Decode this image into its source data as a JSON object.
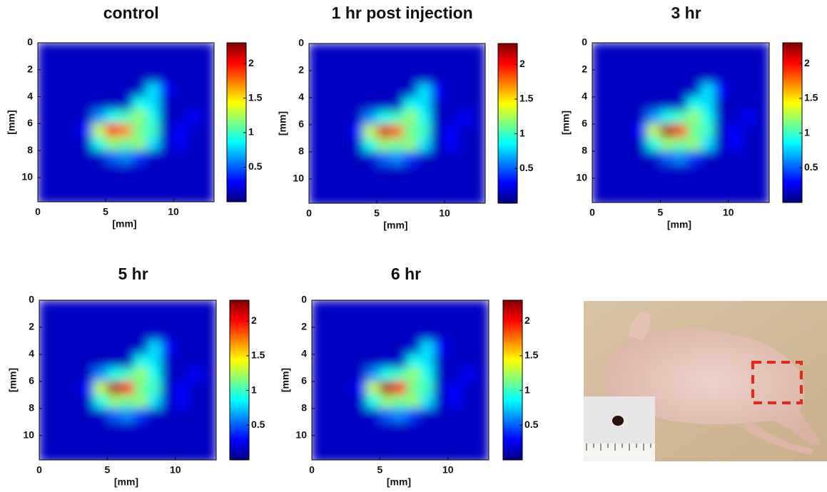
{
  "chart_data": [
    {
      "type": "heatmap",
      "title": "control",
      "xlabel": "[mm]",
      "ylabel": "[mm]",
      "colormap": "jet",
      "x": [
        0.5,
        1.5,
        2.5,
        3.5,
        4.5,
        5.5,
        6.5,
        7.5,
        8.5,
        9.5,
        10.5,
        11.5,
        12.5
      ],
      "y": [
        0.5,
        1.5,
        2.5,
        3.5,
        4.5,
        5.5,
        6.5,
        7.5,
        8.5,
        9.5,
        10.5,
        11.5
      ],
      "z": [
        [
          0.15,
          0.15,
          0.15,
          0.15,
          0.15,
          0.15,
          0.15,
          0.15,
          0.15,
          0.15,
          0.15,
          0.15,
          0.15
        ],
        [
          0.15,
          0.15,
          0.15,
          0.15,
          0.15,
          0.15,
          0.15,
          0.15,
          0.15,
          0.15,
          0.15,
          0.15,
          0.15
        ],
        [
          0.15,
          0.15,
          0.15,
          0.15,
          0.15,
          0.15,
          0.15,
          0.15,
          0.15,
          0.15,
          0.15,
          0.15,
          0.15
        ],
        [
          0.15,
          0.15,
          0.15,
          0.15,
          0.15,
          0.15,
          0.15,
          0.15,
          0.8,
          0.3,
          0.15,
          0.15,
          0.15
        ],
        [
          0.15,
          0.15,
          0.15,
          0.15,
          0.15,
          0.15,
          0.15,
          0.9,
          0.8,
          0.15,
          0.15,
          0.15,
          0.15
        ],
        [
          0.15,
          0.15,
          0.15,
          0.15,
          0.6,
          0.9,
          1.0,
          1.2,
          0.9,
          0.15,
          0.15,
          0.3,
          0.15
        ],
        [
          0.15,
          0.15,
          0.15,
          0.3,
          1.3,
          2.0,
          1.7,
          1.1,
          1.0,
          0.15,
          0.3,
          0.15,
          0.15
        ],
        [
          0.15,
          0.15,
          0.15,
          0.15,
          0.9,
          1.2,
          1.1,
          1.2,
          0.8,
          0.15,
          0.3,
          0.15,
          0.15
        ],
        [
          0.15,
          0.15,
          0.15,
          0.15,
          0.15,
          0.5,
          0.6,
          0.4,
          0.15,
          0.15,
          0.15,
          0.15,
          0.15
        ],
        [
          0.15,
          0.15,
          0.15,
          0.15,
          0.15,
          0.15,
          0.15,
          0.15,
          0.15,
          0.15,
          0.15,
          0.15,
          0.15
        ],
        [
          0.15,
          0.15,
          0.15,
          0.15,
          0.15,
          0.15,
          0.15,
          0.15,
          0.15,
          0.15,
          0.15,
          0.15,
          0.15
        ],
        [
          0.15,
          0.15,
          0.15,
          0.15,
          0.15,
          0.15,
          0.15,
          0.15,
          0.15,
          0.15,
          0.15,
          0.15,
          0.15
        ]
      ],
      "xlim": [
        0,
        13
      ],
      "ylim": [
        0,
        11.8
      ],
      "xticks": [
        0,
        5,
        10
      ],
      "yticks": [
        0,
        2,
        4,
        6,
        8,
        10
      ],
      "clim": [
        0,
        2.3
      ],
      "cticks": [
        0.5,
        1,
        1.5,
        2
      ]
    },
    {
      "type": "heatmap",
      "title": "1 hr post injection",
      "xlabel": "[mm]",
      "ylabel": "[mm]",
      "colormap": "jet",
      "x": [
        0.5,
        1.5,
        2.5,
        3.5,
        4.5,
        5.5,
        6.5,
        7.5,
        8.5,
        9.5,
        10.5,
        11.5,
        12.5
      ],
      "y": [
        0.5,
        1.5,
        2.5,
        3.5,
        4.5,
        5.5,
        6.5,
        7.5,
        8.5,
        9.5,
        10.5,
        11.5
      ],
      "z": [
        [
          0.15,
          0.15,
          0.15,
          0.15,
          0.15,
          0.15,
          0.15,
          0.15,
          0.15,
          0.15,
          0.15,
          0.15,
          0.15
        ],
        [
          0.15,
          0.15,
          0.15,
          0.15,
          0.15,
          0.15,
          0.15,
          0.15,
          0.15,
          0.15,
          0.15,
          0.15,
          0.15
        ],
        [
          0.15,
          0.15,
          0.15,
          0.15,
          0.15,
          0.15,
          0.15,
          0.15,
          0.15,
          0.15,
          0.15,
          0.15,
          0.15
        ],
        [
          0.15,
          0.15,
          0.15,
          0.15,
          0.15,
          0.15,
          0.15,
          0.15,
          0.8,
          0.3,
          0.15,
          0.15,
          0.15
        ],
        [
          0.15,
          0.15,
          0.15,
          0.15,
          0.15,
          0.15,
          0.15,
          0.9,
          0.8,
          0.15,
          0.15,
          0.15,
          0.15
        ],
        [
          0.15,
          0.15,
          0.15,
          0.15,
          0.6,
          0.9,
          1.0,
          1.2,
          0.9,
          0.15,
          0.15,
          0.3,
          0.15
        ],
        [
          0.15,
          0.15,
          0.15,
          0.3,
          1.3,
          2.1,
          1.8,
          1.1,
          1.0,
          0.15,
          0.3,
          0.15,
          0.15
        ],
        [
          0.15,
          0.15,
          0.15,
          0.15,
          0.9,
          1.2,
          1.1,
          1.2,
          0.8,
          0.15,
          0.3,
          0.15,
          0.15
        ],
        [
          0.15,
          0.15,
          0.15,
          0.15,
          0.15,
          0.5,
          0.6,
          0.4,
          0.15,
          0.15,
          0.15,
          0.15,
          0.15
        ],
        [
          0.15,
          0.15,
          0.15,
          0.15,
          0.15,
          0.15,
          0.15,
          0.15,
          0.15,
          0.15,
          0.15,
          0.15,
          0.15
        ],
        [
          0.15,
          0.15,
          0.15,
          0.15,
          0.15,
          0.15,
          0.15,
          0.15,
          0.15,
          0.15,
          0.15,
          0.15,
          0.15
        ],
        [
          0.15,
          0.15,
          0.15,
          0.15,
          0.15,
          0.15,
          0.15,
          0.15,
          0.15,
          0.15,
          0.15,
          0.15,
          0.15
        ]
      ],
      "xlim": [
        0,
        13
      ],
      "ylim": [
        0,
        11.8
      ],
      "xticks": [
        0,
        5,
        10
      ],
      "yticks": [
        0,
        2,
        4,
        6,
        8,
        10
      ],
      "clim": [
        0,
        2.3
      ],
      "cticks": [
        0.5,
        1,
        1.5,
        2
      ]
    },
    {
      "type": "heatmap",
      "title": "3 hr",
      "xlabel": "[mm]",
      "ylabel": "[mm]",
      "colormap": "jet",
      "x": [
        0.5,
        1.5,
        2.5,
        3.5,
        4.5,
        5.5,
        6.5,
        7.5,
        8.5,
        9.5,
        10.5,
        11.5,
        12.5
      ],
      "y": [
        0.5,
        1.5,
        2.5,
        3.5,
        4.5,
        5.5,
        6.5,
        7.5,
        8.5,
        9.5,
        10.5,
        11.5
      ],
      "z": [
        [
          0.15,
          0.15,
          0.15,
          0.15,
          0.15,
          0.15,
          0.15,
          0.15,
          0.15,
          0.15,
          0.15,
          0.15,
          0.15
        ],
        [
          0.15,
          0.15,
          0.15,
          0.15,
          0.15,
          0.15,
          0.15,
          0.15,
          0.15,
          0.15,
          0.15,
          0.15,
          0.15
        ],
        [
          0.15,
          0.15,
          0.15,
          0.15,
          0.15,
          0.15,
          0.15,
          0.15,
          0.15,
          0.15,
          0.15,
          0.15,
          0.15
        ],
        [
          0.15,
          0.15,
          0.15,
          0.15,
          0.15,
          0.15,
          0.15,
          0.15,
          0.8,
          0.3,
          0.15,
          0.15,
          0.15
        ],
        [
          0.15,
          0.15,
          0.15,
          0.15,
          0.15,
          0.15,
          0.15,
          0.9,
          0.8,
          0.15,
          0.15,
          0.15,
          0.15
        ],
        [
          0.15,
          0.15,
          0.15,
          0.15,
          0.6,
          0.9,
          1.0,
          1.2,
          0.9,
          0.15,
          0.15,
          0.3,
          0.15
        ],
        [
          0.15,
          0.15,
          0.15,
          0.3,
          1.3,
          2.2,
          1.9,
          1.1,
          1.0,
          0.15,
          0.3,
          0.15,
          0.15
        ],
        [
          0.15,
          0.15,
          0.15,
          0.15,
          0.9,
          1.2,
          1.1,
          1.2,
          0.8,
          0.15,
          0.3,
          0.15,
          0.15
        ],
        [
          0.15,
          0.15,
          0.15,
          0.15,
          0.15,
          0.5,
          0.6,
          0.4,
          0.15,
          0.15,
          0.15,
          0.15,
          0.15
        ],
        [
          0.15,
          0.15,
          0.15,
          0.15,
          0.15,
          0.15,
          0.15,
          0.15,
          0.15,
          0.15,
          0.15,
          0.15,
          0.15
        ],
        [
          0.15,
          0.15,
          0.15,
          0.15,
          0.15,
          0.15,
          0.15,
          0.15,
          0.15,
          0.15,
          0.15,
          0.15,
          0.15
        ],
        [
          0.15,
          0.15,
          0.15,
          0.15,
          0.15,
          0.15,
          0.15,
          0.15,
          0.15,
          0.15,
          0.15,
          0.15,
          0.15
        ]
      ],
      "xlim": [
        0,
        13
      ],
      "ylim": [
        0,
        11.8
      ],
      "xticks": [
        0,
        5,
        10
      ],
      "yticks": [
        0,
        2,
        4,
        6,
        8,
        10
      ],
      "clim": [
        0,
        2.3
      ],
      "cticks": [
        0.5,
        1,
        1.5,
        2
      ]
    },
    {
      "type": "heatmap",
      "title": "5 hr",
      "xlabel": "[mm]",
      "ylabel": "[mm]",
      "colormap": "jet",
      "x": [
        0.5,
        1.5,
        2.5,
        3.5,
        4.5,
        5.5,
        6.5,
        7.5,
        8.5,
        9.5,
        10.5,
        11.5,
        12.5
      ],
      "y": [
        0.5,
        1.5,
        2.5,
        3.5,
        4.5,
        5.5,
        6.5,
        7.5,
        8.5,
        9.5,
        10.5,
        11.5
      ],
      "z": [
        [
          0.15,
          0.15,
          0.15,
          0.15,
          0.15,
          0.15,
          0.15,
          0.15,
          0.15,
          0.15,
          0.15,
          0.15,
          0.15
        ],
        [
          0.15,
          0.15,
          0.15,
          0.15,
          0.15,
          0.15,
          0.15,
          0.15,
          0.15,
          0.15,
          0.15,
          0.15,
          0.15
        ],
        [
          0.15,
          0.15,
          0.15,
          0.15,
          0.15,
          0.15,
          0.15,
          0.15,
          0.15,
          0.15,
          0.15,
          0.15,
          0.15
        ],
        [
          0.15,
          0.15,
          0.15,
          0.15,
          0.15,
          0.15,
          0.15,
          0.15,
          0.8,
          0.3,
          0.15,
          0.15,
          0.15
        ],
        [
          0.15,
          0.15,
          0.15,
          0.15,
          0.15,
          0.15,
          0.15,
          0.9,
          0.8,
          0.15,
          0.15,
          0.15,
          0.15
        ],
        [
          0.15,
          0.15,
          0.15,
          0.15,
          0.6,
          0.9,
          1.0,
          1.2,
          0.9,
          0.15,
          0.15,
          0.3,
          0.15
        ],
        [
          0.15,
          0.15,
          0.15,
          0.3,
          1.3,
          2.2,
          2.0,
          1.1,
          1.0,
          0.15,
          0.3,
          0.15,
          0.15
        ],
        [
          0.15,
          0.15,
          0.15,
          0.15,
          0.9,
          1.2,
          1.1,
          1.2,
          0.8,
          0.15,
          0.3,
          0.15,
          0.15
        ],
        [
          0.15,
          0.15,
          0.15,
          0.15,
          0.15,
          0.5,
          0.6,
          0.4,
          0.15,
          0.15,
          0.15,
          0.15,
          0.15
        ],
        [
          0.15,
          0.15,
          0.15,
          0.15,
          0.15,
          0.15,
          0.15,
          0.15,
          0.15,
          0.15,
          0.15,
          0.15,
          0.15
        ],
        [
          0.15,
          0.15,
          0.15,
          0.15,
          0.15,
          0.15,
          0.15,
          0.15,
          0.15,
          0.15,
          0.15,
          0.15,
          0.15
        ],
        [
          0.15,
          0.15,
          0.15,
          0.15,
          0.15,
          0.15,
          0.15,
          0.15,
          0.15,
          0.15,
          0.15,
          0.15,
          0.15
        ]
      ],
      "xlim": [
        0,
        13
      ],
      "ylim": [
        0,
        11.8
      ],
      "xticks": [
        0,
        5,
        10
      ],
      "yticks": [
        0,
        2,
        4,
        6,
        8,
        10
      ],
      "clim": [
        0,
        2.3
      ],
      "cticks": [
        0.5,
        1,
        1.5,
        2
      ]
    },
    {
      "type": "heatmap",
      "title": "6 hr",
      "xlabel": "[mm]",
      "ylabel": "[mm]",
      "colormap": "jet",
      "x": [
        0.5,
        1.5,
        2.5,
        3.5,
        4.5,
        5.5,
        6.5,
        7.5,
        8.5,
        9.5,
        10.5,
        11.5,
        12.5
      ],
      "y": [
        0.5,
        1.5,
        2.5,
        3.5,
        4.5,
        5.5,
        6.5,
        7.5,
        8.5,
        9.5,
        10.5,
        11.5
      ],
      "z": [
        [
          0.15,
          0.15,
          0.15,
          0.15,
          0.15,
          0.15,
          0.15,
          0.15,
          0.15,
          0.15,
          0.15,
          0.15,
          0.15
        ],
        [
          0.15,
          0.15,
          0.15,
          0.15,
          0.15,
          0.15,
          0.15,
          0.15,
          0.15,
          0.15,
          0.15,
          0.15,
          0.15
        ],
        [
          0.15,
          0.15,
          0.15,
          0.15,
          0.15,
          0.15,
          0.15,
          0.15,
          0.15,
          0.15,
          0.15,
          0.15,
          0.15
        ],
        [
          0.15,
          0.15,
          0.15,
          0.15,
          0.15,
          0.15,
          0.15,
          0.15,
          0.8,
          0.3,
          0.15,
          0.15,
          0.15
        ],
        [
          0.15,
          0.15,
          0.15,
          0.15,
          0.15,
          0.15,
          0.15,
          0.9,
          0.8,
          0.15,
          0.15,
          0.15,
          0.15
        ],
        [
          0.15,
          0.15,
          0.15,
          0.15,
          0.6,
          0.9,
          1.0,
          1.2,
          0.9,
          0.15,
          0.15,
          0.3,
          0.15
        ],
        [
          0.15,
          0.15,
          0.15,
          0.3,
          1.3,
          2.2,
          2.0,
          1.1,
          1.0,
          0.15,
          0.3,
          0.15,
          0.15
        ],
        [
          0.15,
          0.15,
          0.15,
          0.15,
          0.9,
          1.2,
          1.1,
          1.2,
          0.8,
          0.15,
          0.3,
          0.15,
          0.15
        ],
        [
          0.15,
          0.15,
          0.15,
          0.15,
          0.15,
          0.5,
          0.6,
          0.4,
          0.15,
          0.15,
          0.15,
          0.15,
          0.15
        ],
        [
          0.15,
          0.15,
          0.15,
          0.15,
          0.15,
          0.15,
          0.15,
          0.15,
          0.15,
          0.15,
          0.15,
          0.15,
          0.15
        ],
        [
          0.15,
          0.15,
          0.15,
          0.15,
          0.15,
          0.15,
          0.15,
          0.15,
          0.15,
          0.15,
          0.15,
          0.15,
          0.15
        ],
        [
          0.15,
          0.15,
          0.15,
          0.15,
          0.15,
          0.15,
          0.15,
          0.15,
          0.15,
          0.15,
          0.15,
          0.15,
          0.15
        ]
      ],
      "xlim": [
        0,
        13
      ],
      "ylim": [
        0,
        11.8
      ],
      "xticks": [
        0,
        5,
        10
      ],
      "yticks": [
        0,
        2,
        4,
        6,
        8,
        10
      ],
      "clim": [
        0,
        2.3
      ],
      "cticks": [
        0.5,
        1,
        1.5,
        2
      ]
    }
  ]
}
